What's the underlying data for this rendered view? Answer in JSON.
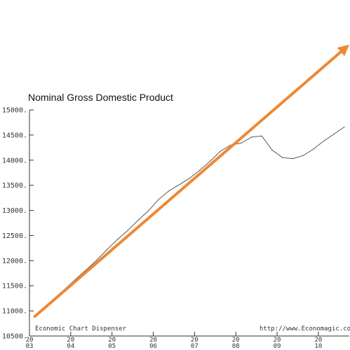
{
  "chart_data": {
    "type": "line",
    "title": "Nominal Gross Domestic Product",
    "footer_left": "Economic Chart Dispenser",
    "footer_right": "http://www.Economagic.co",
    "xlabel": "",
    "ylabel": "",
    "ylim": [
      10500,
      15000
    ],
    "y_ticks": [
      "10500.",
      "11000.",
      "11500.",
      "12000.",
      "12500.",
      "13000.",
      "13500.",
      "14000.",
      "14500.",
      "15000."
    ],
    "x_ticks": [
      {
        "year": 2003,
        "line1": "20",
        "line2": "03"
      },
      {
        "year": 2004,
        "line1": "20",
        "line2": "04"
      },
      {
        "year": 2005,
        "line1": "20",
        "line2": "05"
      },
      {
        "year": 2006,
        "line1": "20",
        "line2": "06"
      },
      {
        "year": 2007,
        "line1": "20",
        "line2": "07"
      },
      {
        "year": 2008,
        "line1": "20",
        "line2": "08"
      },
      {
        "year": 2009,
        "line1": "20",
        "line2": "09"
      },
      {
        "year": 2010,
        "line1": "20",
        "line2": "10"
      }
    ],
    "xlim": [
      2003.0,
      2010.75
    ],
    "grid": false,
    "series": [
      {
        "color": "#555555",
        "x": [
          2003.13,
          2003.38,
          2003.63,
          2003.88,
          2004.13,
          2004.38,
          2004.63,
          2004.88,
          2005.13,
          2005.38,
          2005.63,
          2005.88,
          2006.13,
          2006.38,
          2006.63,
          2006.88,
          2007.13,
          2007.38,
          2007.63,
          2007.88,
          2008.13,
          2008.38,
          2008.63,
          2008.88,
          2009.13,
          2009.38,
          2009.63,
          2009.88,
          2010.13,
          2010.38,
          2010.63
        ],
        "y": [
          10890,
          11050,
          11270,
          11450,
          11640,
          11820,
          12010,
          12220,
          12420,
          12600,
          12800,
          12990,
          13220,
          13390,
          13510,
          13640,
          13800,
          13980,
          14180,
          14300,
          14340,
          14460,
          14480,
          14200,
          14050,
          14030,
          14090,
          14220,
          14380,
          14520,
          14660
        ]
      }
    ],
    "trend_arrow": {
      "color": "#ee8833",
      "start": {
        "x": 2003.13,
        "y": 10890
      },
      "end": {
        "x": 2010.75,
        "y": 16300
      }
    }
  }
}
